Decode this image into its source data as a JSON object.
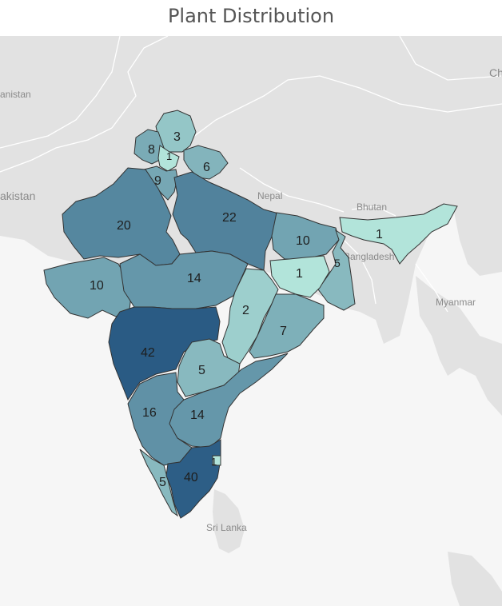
{
  "title": "Plant Distribution",
  "map_labels": {
    "pakistan_partial": "akistan",
    "afghanistan_partial": "anistan",
    "nepal": "Nepal",
    "bhutan": "Bhutan",
    "bangladesh": "Bangladesh",
    "myanmar": "Myanmar",
    "sri_lanka": "Sri Lanka",
    "china_partial": "Ch"
  },
  "colors": {
    "background": "#ffffff",
    "land": "#e2e2e2",
    "water": "#f6f6f6",
    "border": "#333333",
    "scale_low": "#b2e4da",
    "scale_high": "#2a5b84"
  },
  "regions": [
    {
      "name": "jammu-kashmir",
      "value": 3
    },
    {
      "name": "himachal-pradesh",
      "value": 8
    },
    {
      "name": "punjab",
      "value": 1
    },
    {
      "name": "uttarakhand",
      "value": 6
    },
    {
      "name": "haryana",
      "value": 9
    },
    {
      "name": "rajasthan",
      "value": 20
    },
    {
      "name": "uttar-pradesh",
      "value": 22
    },
    {
      "name": "bihar",
      "value": 10
    },
    {
      "name": "northeast",
      "value": 1
    },
    {
      "name": "west-bengal",
      "value": 5
    },
    {
      "name": "gujarat",
      "value": 10
    },
    {
      "name": "madhya-pradesh",
      "value": 14
    },
    {
      "name": "jharkhand",
      "value": 1
    },
    {
      "name": "chhattisgarh",
      "value": 2
    },
    {
      "name": "odisha",
      "value": 7
    },
    {
      "name": "maharashtra",
      "value": 42
    },
    {
      "name": "telangana",
      "value": 5
    },
    {
      "name": "karnataka",
      "value": 16
    },
    {
      "name": "andhra-pradesh",
      "value": 14
    },
    {
      "name": "puducherry",
      "value": 1
    },
    {
      "name": "kerala",
      "value": 5
    },
    {
      "name": "tamil-nadu",
      "value": 40
    }
  ]
}
